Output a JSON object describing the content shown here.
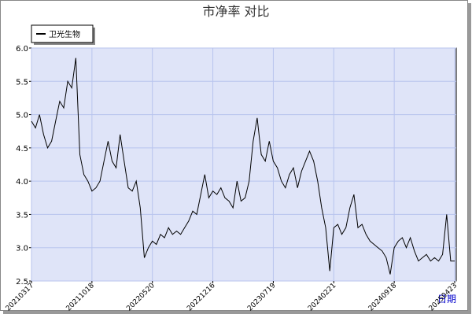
{
  "chart_data": {
    "type": "line",
    "title": "市净率  对比",
    "x_label": "日期",
    "categories": [
      "20210317",
      null,
      null,
      null,
      null,
      null,
      null,
      null,
      null,
      null,
      null,
      null,
      null,
      null,
      null,
      "20211018",
      null,
      null,
      null,
      null,
      null,
      null,
      null,
      null,
      null,
      null,
      null,
      null,
      null,
      null,
      "20220520",
      null,
      null,
      null,
      null,
      null,
      null,
      null,
      null,
      null,
      null,
      null,
      null,
      null,
      null,
      "20221216",
      null,
      null,
      null,
      null,
      null,
      null,
      null,
      null,
      null,
      null,
      null,
      null,
      null,
      null,
      "20230719",
      null,
      null,
      null,
      null,
      null,
      null,
      null,
      null,
      null,
      null,
      null,
      null,
      null,
      null,
      "20240221",
      null,
      null,
      null,
      null,
      null,
      null,
      null,
      null,
      null,
      null,
      null,
      null,
      null,
      null,
      "20240918",
      null,
      null,
      null,
      null,
      null,
      null,
      null,
      null,
      null,
      null,
      null,
      null,
      null,
      null,
      "20250423"
    ],
    "series": [
      {
        "name": "卫光生物",
        "color": "#000000",
        "values": [
          4.9,
          4.8,
          5.0,
          4.7,
          4.5,
          4.6,
          4.9,
          5.2,
          5.1,
          5.5,
          5.4,
          5.85,
          4.4,
          4.1,
          4.0,
          3.85,
          3.9,
          4.0,
          4.3,
          4.6,
          4.3,
          4.2,
          4.7,
          4.3,
          3.9,
          3.85,
          4.0,
          3.6,
          2.85,
          3.0,
          3.1,
          3.05,
          3.2,
          3.15,
          3.3,
          3.2,
          3.25,
          3.2,
          3.3,
          3.4,
          3.55,
          3.5,
          3.8,
          4.1,
          3.75,
          3.85,
          3.8,
          3.9,
          3.75,
          3.7,
          3.6,
          4.0,
          3.7,
          3.75,
          4.0,
          4.6,
          4.95,
          4.4,
          4.3,
          4.6,
          4.3,
          4.2,
          4.0,
          3.9,
          4.1,
          4.2,
          3.9,
          4.15,
          4.3,
          4.45,
          4.3,
          4.0,
          3.6,
          3.3,
          2.65,
          3.3,
          3.35,
          3.2,
          3.3,
          3.6,
          3.8,
          3.3,
          3.35,
          3.2,
          3.1,
          3.05,
          3.0,
          2.95,
          2.85,
          2.6,
          3.0,
          3.1,
          3.15,
          3.0,
          3.15,
          2.95,
          2.8,
          2.85,
          2.9,
          2.8,
          2.85,
          2.8,
          2.9,
          3.5,
          2.8,
          2.8
        ]
      }
    ],
    "ylim": [
      2.5,
      6.0
    ],
    "yticks": [
      {
        "value": 2.5,
        "label": "2.5"
      },
      {
        "value": 3.0,
        "label": "3.0"
      },
      {
        "value": 3.5,
        "label": "3.5"
      },
      {
        "value": 4.0,
        "label": "4.0"
      },
      {
        "value": 4.5,
        "label": "4.5"
      },
      {
        "value": 5.0,
        "label": "5.0"
      },
      {
        "value": 5.5,
        "label": "5.5"
      },
      {
        "value": 6.0,
        "label": "6.0"
      }
    ],
    "grid": true
  }
}
